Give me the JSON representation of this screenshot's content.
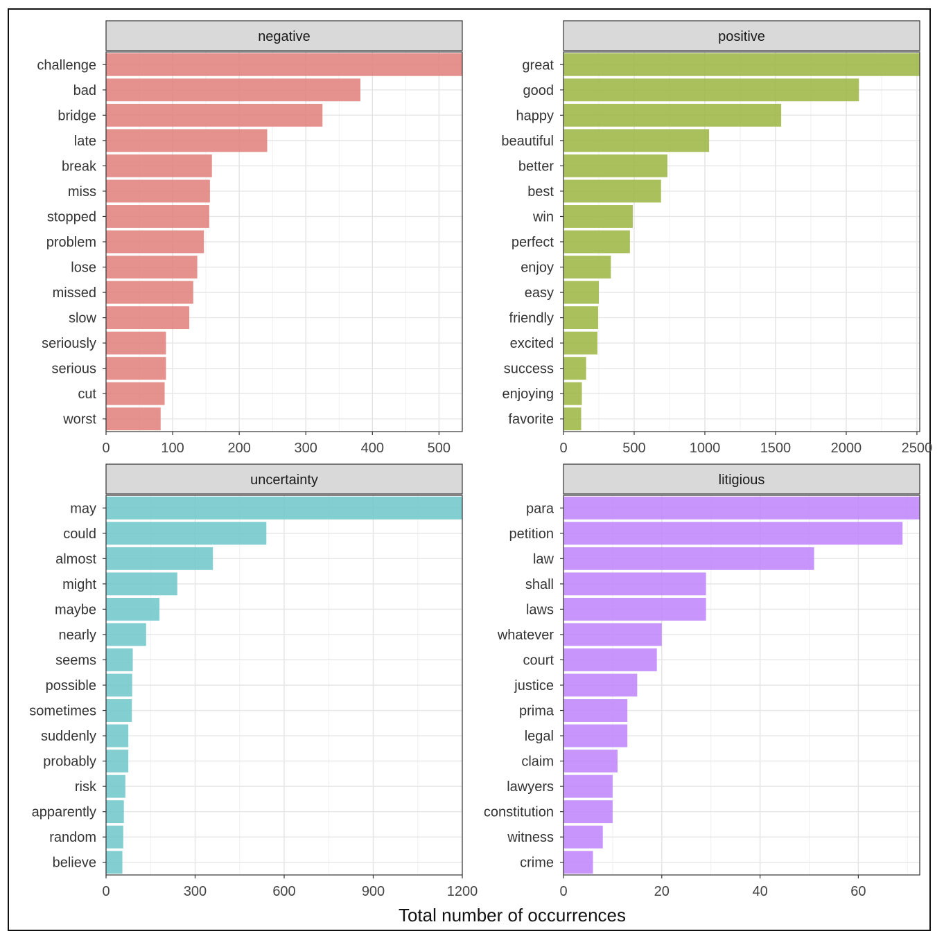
{
  "chart_data": {
    "type": "bar",
    "orientation": "horizontal",
    "layout": "facet-wrap 2x2",
    "xlabel": "Total number of occurrences",
    "facets": [
      {
        "title": "negative",
        "color": "#E07F7A",
        "xlim": [
          0,
          535
        ],
        "ticks": [
          0,
          100,
          200,
          300,
          400,
          500
        ],
        "categories": [
          "challenge",
          "bad",
          "bridge",
          "late",
          "break",
          "miss",
          "stopped",
          "problem",
          "lose",
          "missed",
          "slow",
          "seriously",
          "serious",
          "cut",
          "worst"
        ],
        "values": [
          535,
          382,
          325,
          242,
          159,
          156,
          155,
          147,
          137,
          131,
          125,
          90,
          90,
          88,
          82
        ]
      },
      {
        "title": "positive",
        "color": "#9BB53F",
        "xlim": [
          0,
          2520
        ],
        "ticks": [
          0,
          500,
          1000,
          1500,
          2000,
          2500
        ],
        "tick_labels": [
          "0",
          "500",
          "1000",
          "1500",
          "2000",
          "2500"
        ],
        "categories": [
          "great",
          "good",
          "happy",
          "beautiful",
          "better",
          "best",
          "win",
          "perfect",
          "enjoy",
          "easy",
          "friendly",
          "excited",
          "success",
          "enjoying",
          "favorite"
        ],
        "values": [
          2520,
          2090,
          1540,
          1030,
          735,
          690,
          490,
          470,
          335,
          250,
          245,
          240,
          160,
          130,
          125
        ]
      },
      {
        "title": "uncertainty",
        "color": "#6CC5C8",
        "xlim": [
          0,
          1200
        ],
        "ticks": [
          0,
          300,
          600,
          900,
          1200
        ],
        "categories": [
          "may",
          "could",
          "almost",
          "might",
          "maybe",
          "nearly",
          "seems",
          "possible",
          "sometimes",
          "suddenly",
          "probably",
          "risk",
          "apparently",
          "random",
          "believe"
        ],
        "values": [
          1200,
          540,
          360,
          240,
          180,
          135,
          90,
          88,
          87,
          75,
          75,
          65,
          60,
          58,
          55
        ]
      },
      {
        "title": "litigious",
        "color": "#BD82FA",
        "xlim": [
          0,
          72.5
        ],
        "ticks": [
          0,
          20,
          40,
          60
        ],
        "categories": [
          "para",
          "petition",
          "law",
          "shall",
          "laws",
          "whatever",
          "court",
          "justice",
          "prima",
          "legal",
          "claim",
          "lawyers",
          "constitution",
          "witness",
          "crime"
        ],
        "values": [
          72.5,
          69,
          51,
          29,
          29,
          20,
          19,
          15,
          13,
          13,
          11,
          10,
          10,
          8,
          6
        ]
      }
    ]
  }
}
